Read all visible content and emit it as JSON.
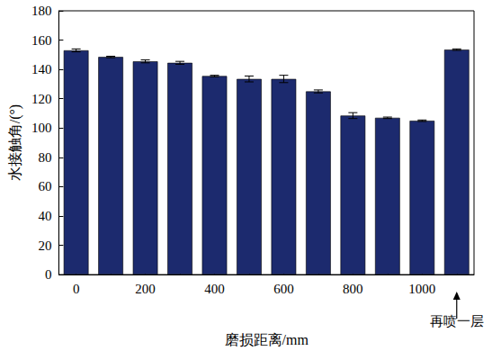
{
  "chart_data": {
    "type": "bar",
    "x_label": "磨损距离/mm",
    "y_label": "水接触角/(°)",
    "categories": [
      "0",
      null,
      "200",
      null,
      "400",
      null,
      "600",
      null,
      "800",
      null,
      "1000",
      "再喷一层"
    ],
    "values": [
      153,
      148.5,
      145.5,
      144.5,
      135.5,
      133.5,
      133.5,
      125,
      108.5,
      107,
      105,
      153.5
    ],
    "errors": [
      1,
      0.5,
      1,
      1,
      0.5,
      2,
      2.5,
      1,
      2,
      0.5,
      0.5,
      0.5
    ],
    "color": "#1c2a6e",
    "ylim": [
      0,
      180
    ],
    "yticks": [
      0,
      20,
      40,
      60,
      80,
      100,
      120,
      140,
      160,
      180
    ],
    "grid": false
  }
}
